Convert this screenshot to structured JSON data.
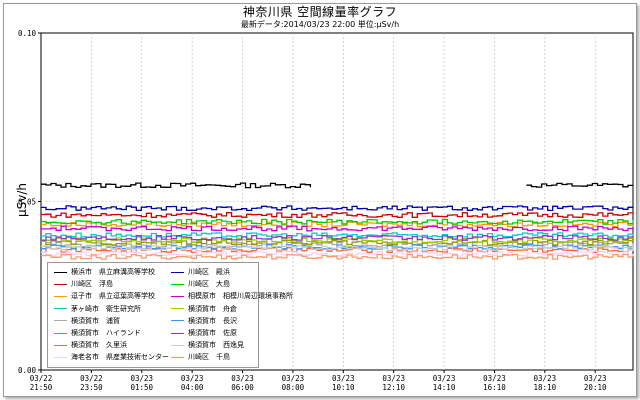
{
  "chart_data": {
    "type": "line",
    "title": "神奈川県 空間線量率グラフ",
    "subtitle": "最新データ:2014/03/23 22:00  単位:μSv/h",
    "ylabel": "μSv/h",
    "xlabel": "",
    "ylim": [
      0.0,
      0.1
    ],
    "yticks": [
      "0.00",
      "0.05",
      "0.10"
    ],
    "xticks": [
      {
        "date": "03/22",
        "time": "21:50"
      },
      {
        "date": "03/22",
        "time": "23:50"
      },
      {
        "date": "03/23",
        "time": "01:50"
      },
      {
        "date": "03/23",
        "time": "04:00"
      },
      {
        "date": "03/23",
        "time": "06:00"
      },
      {
        "date": "03/23",
        "time": "08:00"
      },
      {
        "date": "03/23",
        "time": "10:10"
      },
      {
        "date": "03/23",
        "time": "12:10"
      },
      {
        "date": "03/23",
        "time": "14:10"
      },
      {
        "date": "03/23",
        "time": "16:10"
      },
      {
        "date": "03/23",
        "time": "18:10"
      },
      {
        "date": "03/23",
        "time": "20:10"
      }
    ],
    "grid": true,
    "legend_position": "bottom-left",
    "series": [
      {
        "name": "横浜市　県立麻溝高等学校",
        "color": "#000000",
        "base": 0.0548,
        "segments": [
          [
            0,
            0.455
          ],
          [
            0.82,
            1.0
          ]
        ]
      },
      {
        "name": "川崎区　浮島",
        "color": "#cc0000",
        "base": 0.046,
        "segments": [
          [
            0,
            1.0
          ]
        ]
      },
      {
        "name": "逗子市　県立逗葉高等学校",
        "color": "#ff9900",
        "base": 0.0432,
        "segments": [
          [
            0,
            1.0
          ]
        ]
      },
      {
        "name": "茅ヶ崎市　衛生研究所",
        "color": "#00cccc",
        "base": 0.04,
        "segments": [
          [
            0,
            1.0
          ]
        ]
      },
      {
        "name": "横須賀市　浦賀",
        "color": "#aaaaaa",
        "base": 0.0372,
        "segments": [
          [
            0,
            1.0
          ]
        ]
      },
      {
        "name": "横須賀市　ハイランド",
        "color": "#ff6633",
        "base": 0.0356,
        "segments": [
          [
            0,
            1.0
          ]
        ]
      },
      {
        "name": "横須賀市　久里浜",
        "color": "#999900",
        "base": 0.0378,
        "segments": [
          [
            0,
            1.0
          ]
        ]
      },
      {
        "name": "海老名市　県産業技術センター",
        "color": "#ffccff",
        "base": 0.0345,
        "segments": [
          [
            0,
            1.0
          ]
        ]
      },
      {
        "name": "川崎区　殿浜",
        "color": "#0000aa",
        "base": 0.048,
        "segments": [
          [
            0,
            1.0
          ]
        ]
      },
      {
        "name": "川崎区　大島",
        "color": "#00cc00",
        "base": 0.044,
        "segments": [
          [
            0,
            1.0
          ]
        ]
      },
      {
        "name": "相模原市　相模川周辺環境事務所",
        "color": "#cc00cc",
        "base": 0.042,
        "segments": [
          [
            0,
            1.0
          ]
        ]
      },
      {
        "name": "横須賀市　舟倉",
        "color": "#99cc00",
        "base": 0.0385,
        "segments": [
          [
            0,
            1.0
          ]
        ]
      },
      {
        "name": "横須賀市　長沢",
        "color": "#3399ff",
        "base": 0.0365,
        "segments": [
          [
            0,
            1.0
          ]
        ]
      },
      {
        "name": "横須賀市　佐原",
        "color": "#9933cc",
        "base": 0.0392,
        "segments": [
          [
            0,
            1.0
          ]
        ]
      },
      {
        "name": "横須賀市　西逸見",
        "color": "#cccccc",
        "base": 0.0362,
        "segments": [
          [
            0,
            1.0
          ]
        ]
      },
      {
        "name": "川崎区　千鳥",
        "color": "#ff9966",
        "base": 0.0336,
        "segments": [
          [
            0,
            1.0
          ]
        ]
      }
    ]
  }
}
